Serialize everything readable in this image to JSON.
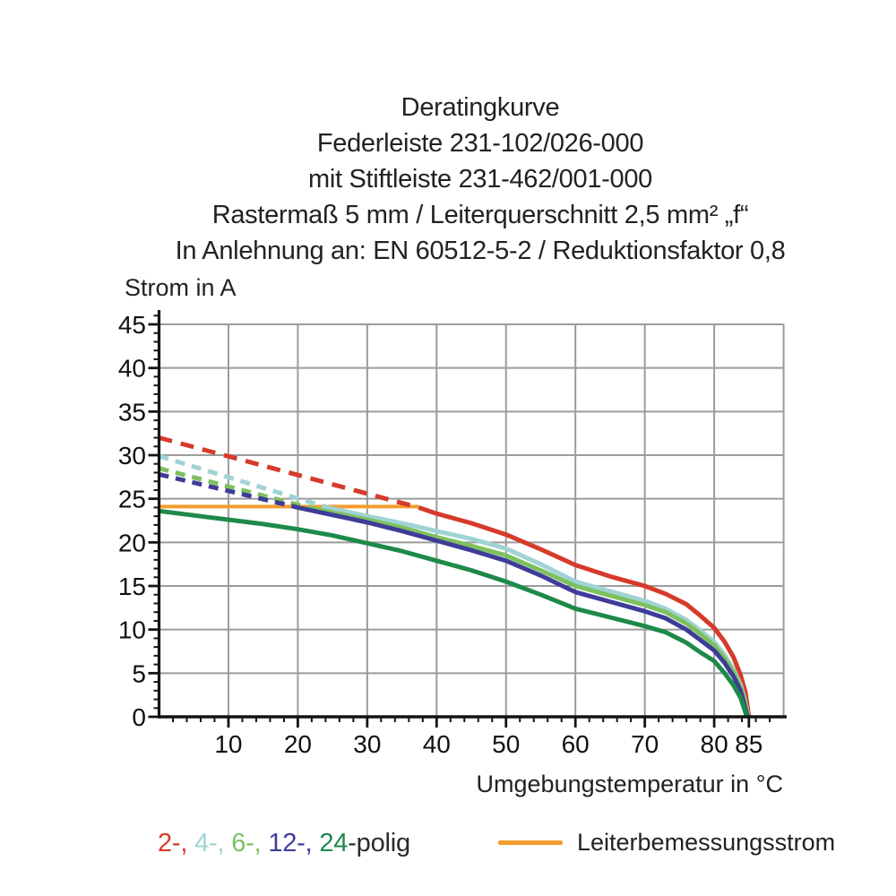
{
  "title": {
    "lines": [
      "Deratingkurve",
      "Federleiste 231-102/026-000",
      "mit Stiftleiste 231-462/001-000",
      "Rastermaß 5 mm / Leiterquerschnitt 2,5 mm² „f“",
      "In Anlehnung an: EN 60512-5-2 / Reduktionsfaktor 0,8"
    ]
  },
  "legend": {
    "poles": [
      {
        "text": "2-, ",
        "color": "#d63a2b"
      },
      {
        "text": "4-, ",
        "color": "#a0d3d4"
      },
      {
        "text": "6-, ",
        "color": "#7dc15f"
      },
      {
        "text": "12-, ",
        "color": "#3f3c99"
      },
      {
        "text": "24",
        "color": "#1d8a4a"
      },
      {
        "text": "-polig",
        "color": "#2b2b2b"
      }
    ],
    "rated_current_label": "Leiterbemessungsstrom",
    "rated_current_color": "#f29d2e"
  },
  "chart_data": {
    "type": "line",
    "title": "Deratingkurve Federleiste 231-102/026-000 mit Stiftleiste 231-462/001-000",
    "x_axis": {
      "label": "Umgebungstemperatur in °C",
      "min": 0,
      "max": 90,
      "major_ticks": [
        10,
        20,
        30,
        40,
        50,
        60,
        70,
        80,
        85
      ],
      "minor_step": 2,
      "grid_step": 10
    },
    "y_axis": {
      "label": "Strom in A",
      "min": 0,
      "max": 45,
      "major_ticks": [
        0,
        5,
        10,
        15,
        20,
        25,
        30,
        35,
        40,
        45
      ],
      "minor_step": 1,
      "grid_step": 5
    },
    "grid": {
      "color": "#9b9b9b",
      "on": true
    },
    "axis_color": "#141414",
    "series": [
      {
        "name": "Leiterbemessungsstrom",
        "color": "#f29d2e",
        "width": 4,
        "solid": [
          [
            0,
            24.1
          ],
          [
            37.4,
            24.1
          ]
        ]
      },
      {
        "name": "2-polig",
        "color": "#d63a2b",
        "width": 5,
        "dash": "15 10",
        "dashed": [
          [
            0,
            32
          ],
          [
            37.4,
            24
          ]
        ],
        "solid": [
          [
            37.4,
            24
          ],
          [
            40,
            23.3
          ],
          [
            45,
            22.2
          ],
          [
            50,
            20.9
          ],
          [
            55,
            19.2
          ],
          [
            60,
            17.4
          ],
          [
            65,
            16.1
          ],
          [
            70,
            15
          ],
          [
            73,
            14.1
          ],
          [
            76,
            12.9
          ],
          [
            78,
            11.6
          ],
          [
            80,
            10.2
          ],
          [
            81.5,
            8.6
          ],
          [
            82.8,
            6.8
          ],
          [
            83.8,
            4.8
          ],
          [
            84.5,
            2.8
          ],
          [
            85,
            0
          ]
        ]
      },
      {
        "name": "4-polig",
        "color": "#a0d3d4",
        "width": 5,
        "dash": "11 8",
        "dashed": [
          [
            0,
            29.9
          ],
          [
            24.3,
            24
          ]
        ],
        "solid": [
          [
            24.3,
            24
          ],
          [
            30,
            23
          ],
          [
            35,
            22.2
          ],
          [
            40,
            21.3
          ],
          [
            45,
            20.4
          ],
          [
            50,
            19.3
          ],
          [
            55,
            17.5
          ],
          [
            60,
            15.5
          ],
          [
            65,
            14.4
          ],
          [
            70,
            13.3
          ],
          [
            73,
            12.4
          ],
          [
            76,
            11.1
          ],
          [
            78,
            9.9
          ],
          [
            80,
            8.6
          ],
          [
            81.5,
            7.1
          ],
          [
            82.8,
            5.4
          ],
          [
            83.8,
            3.7
          ],
          [
            84.4,
            2
          ],
          [
            84.9,
            0
          ]
        ]
      },
      {
        "name": "6-polig",
        "color": "#7dc15f",
        "width": 5,
        "dash": "11 8",
        "dashed": [
          [
            0,
            28.5
          ],
          [
            21.5,
            24
          ]
        ],
        "solid": [
          [
            21.5,
            24
          ],
          [
            30,
            22.6
          ],
          [
            35,
            21.7
          ],
          [
            40,
            20.6
          ],
          [
            45,
            19.6
          ],
          [
            50,
            18.5
          ],
          [
            55,
            16.8
          ],
          [
            60,
            15
          ],
          [
            65,
            13.9
          ],
          [
            70,
            12.8
          ],
          [
            73,
            12
          ],
          [
            76,
            10.7
          ],
          [
            78,
            9.5
          ],
          [
            80,
            8.2
          ],
          [
            81.5,
            6.7
          ],
          [
            82.8,
            5.1
          ],
          [
            83.8,
            3.4
          ],
          [
            84.4,
            1.8
          ],
          [
            84.85,
            0
          ]
        ]
      },
      {
        "name": "12-polig",
        "color": "#3f3c99",
        "width": 5,
        "dash": "11 8",
        "dashed": [
          [
            0,
            27.8
          ],
          [
            20,
            24
          ]
        ],
        "solid": [
          [
            20,
            24
          ],
          [
            30,
            22.3
          ],
          [
            35,
            21.3
          ],
          [
            40,
            20.2
          ],
          [
            45,
            19.1
          ],
          [
            50,
            17.9
          ],
          [
            55,
            16.2
          ],
          [
            60,
            14.3
          ],
          [
            65,
            13.2
          ],
          [
            70,
            12.1
          ],
          [
            73,
            11.3
          ],
          [
            76,
            10
          ],
          [
            78,
            8.8
          ],
          [
            80,
            7.6
          ],
          [
            81.5,
            6.2
          ],
          [
            82.8,
            4.6
          ],
          [
            83.8,
            3
          ],
          [
            84.3,
            1.5
          ],
          [
            84.8,
            0
          ]
        ]
      },
      {
        "name": "24-polig",
        "color": "#1d8a4a",
        "width": 5,
        "solid": [
          [
            0,
            23.6
          ],
          [
            5,
            23.1
          ],
          [
            10,
            22.6
          ],
          [
            15,
            22.1
          ],
          [
            20,
            21.5
          ],
          [
            25,
            20.8
          ],
          [
            30,
            19.9
          ],
          [
            35,
            19
          ],
          [
            40,
            17.9
          ],
          [
            45,
            16.8
          ],
          [
            50,
            15.5
          ],
          [
            55,
            14
          ],
          [
            60,
            12.4
          ],
          [
            65,
            11.4
          ],
          [
            70,
            10.4
          ],
          [
            73,
            9.7
          ],
          [
            76,
            8.5
          ],
          [
            78,
            7.4
          ],
          [
            80,
            6.4
          ],
          [
            81.5,
            5
          ],
          [
            82.8,
            3.6
          ],
          [
            83.8,
            2.2
          ],
          [
            84.3,
            1
          ],
          [
            84.7,
            0
          ]
        ]
      }
    ]
  }
}
